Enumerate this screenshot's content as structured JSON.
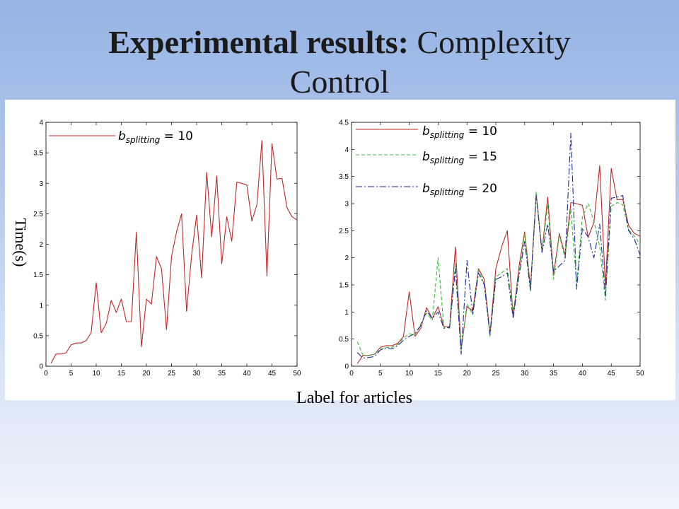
{
  "title": {
    "bold": "Experimental results:",
    "rest": "Complexity",
    "line2": "Control"
  },
  "ylabel": "Time(s)",
  "xlabel": "Label for articles",
  "colors": {
    "series_10": "#c0282a",
    "series_15": "#33bb33",
    "series_20": "#1c2a9c"
  },
  "chart_data": [
    {
      "type": "line",
      "xlim": [
        0,
        50
      ],
      "ylim": [
        0,
        4
      ],
      "x_ticks": [
        0,
        5,
        10,
        15,
        20,
        25,
        30,
        35,
        40,
        45,
        50
      ],
      "y_ticks": [
        0,
        0.5,
        1,
        1.5,
        2,
        2.5,
        3,
        3.5,
        4
      ],
      "x": [
        1,
        2,
        3,
        4,
        5,
        6,
        7,
        8,
        9,
        10,
        11,
        12,
        13,
        14,
        15,
        16,
        17,
        18,
        19,
        20,
        21,
        22,
        23,
        24,
        25,
        26,
        27,
        28,
        29,
        30,
        31,
        32,
        33,
        34,
        35,
        36,
        37,
        38,
        39,
        40,
        41,
        42,
        43,
        44,
        45,
        46,
        47,
        48,
        49,
        50
      ],
      "legend": [
        "b_splitting = 10"
      ],
      "series": [
        {
          "name": "b_splitting = 10",
          "style": "solid",
          "values": [
            0.05,
            0.2,
            0.2,
            0.22,
            0.35,
            0.38,
            0.38,
            0.42,
            0.55,
            1.37,
            0.55,
            0.7,
            1.08,
            0.88,
            1.1,
            0.73,
            0.73,
            2.2,
            0.32,
            1.1,
            1.02,
            1.8,
            1.6,
            0.6,
            1.8,
            2.2,
            2.5,
            0.9,
            1.82,
            2.48,
            1.45,
            3.18,
            2.12,
            3.12,
            1.68,
            2.45,
            2.05,
            3.02,
            3.0,
            2.97,
            2.38,
            2.65,
            3.7,
            1.48,
            3.65,
            3.07,
            3.08,
            2.6,
            2.45,
            2.4
          ]
        }
      ]
    },
    {
      "type": "line",
      "xlim": [
        0,
        50
      ],
      "ylim": [
        0,
        4.5
      ],
      "x_ticks": [
        0,
        5,
        10,
        15,
        20,
        25,
        30,
        35,
        40,
        45,
        50
      ],
      "y_ticks": [
        0,
        0.5,
        1,
        1.5,
        2,
        2.5,
        3,
        3.5,
        4,
        4.5
      ],
      "x": [
        1,
        2,
        3,
        4,
        5,
        6,
        7,
        8,
        9,
        10,
        11,
        12,
        13,
        14,
        15,
        16,
        17,
        18,
        19,
        20,
        21,
        22,
        23,
        24,
        25,
        26,
        27,
        28,
        29,
        30,
        31,
        32,
        33,
        34,
        35,
        36,
        37,
        38,
        39,
        40,
        41,
        42,
        43,
        44,
        45,
        46,
        47,
        48,
        49,
        50
      ],
      "legend": [
        "b_splitting = 10",
        "b_splitting = 15",
        "b_splitting = 20"
      ],
      "series": [
        {
          "name": "b_splitting = 10",
          "style": "solid",
          "values": [
            0.05,
            0.2,
            0.2,
            0.22,
            0.35,
            0.38,
            0.38,
            0.42,
            0.55,
            1.37,
            0.55,
            0.7,
            1.08,
            0.88,
            1.1,
            0.73,
            0.73,
            2.2,
            0.32,
            1.1,
            1.02,
            1.8,
            1.6,
            0.6,
            1.8,
            2.2,
            2.5,
            0.9,
            1.82,
            2.48,
            1.45,
            3.18,
            2.12,
            3.12,
            1.68,
            2.45,
            2.05,
            3.02,
            3.0,
            2.97,
            2.38,
            2.65,
            3.7,
            1.48,
            3.65,
            3.07,
            3.08,
            2.6,
            2.45,
            2.4
          ]
        },
        {
          "name": "b_splitting = 15",
          "style": "dashed",
          "values": [
            0.45,
            0.2,
            0.2,
            0.22,
            0.32,
            0.35,
            0.35,
            0.4,
            0.52,
            0.6,
            0.58,
            0.78,
            0.98,
            0.85,
            2.0,
            0.72,
            0.7,
            1.9,
            0.28,
            1.15,
            0.95,
            1.78,
            1.52,
            0.55,
            1.65,
            1.72,
            1.8,
            1.02,
            1.7,
            2.45,
            1.38,
            3.22,
            2.1,
            2.98,
            1.6,
            2.42,
            2.0,
            2.9,
            1.5,
            2.75,
            3.0,
            2.68,
            2.2,
            1.22,
            2.95,
            3.02,
            2.98,
            2.52,
            2.4,
            2.25
          ]
        },
        {
          "name": "b_splitting = 20",
          "style": "dashdot",
          "values": [
            0.25,
            0.15,
            0.16,
            0.18,
            0.3,
            0.33,
            0.32,
            0.38,
            0.48,
            0.55,
            0.6,
            0.75,
            1.02,
            0.88,
            1.0,
            0.7,
            0.72,
            1.8,
            0.22,
            1.95,
            0.95,
            1.72,
            1.5,
            0.58,
            1.6,
            1.65,
            1.72,
            0.88,
            1.65,
            2.3,
            1.4,
            3.15,
            2.1,
            2.62,
            1.75,
            1.85,
            1.95,
            4.3,
            1.42,
            2.55,
            2.38,
            2.0,
            2.62,
            1.3,
            3.1,
            3.12,
            3.15,
            2.5,
            2.35,
            2.05
          ]
        }
      ]
    }
  ]
}
